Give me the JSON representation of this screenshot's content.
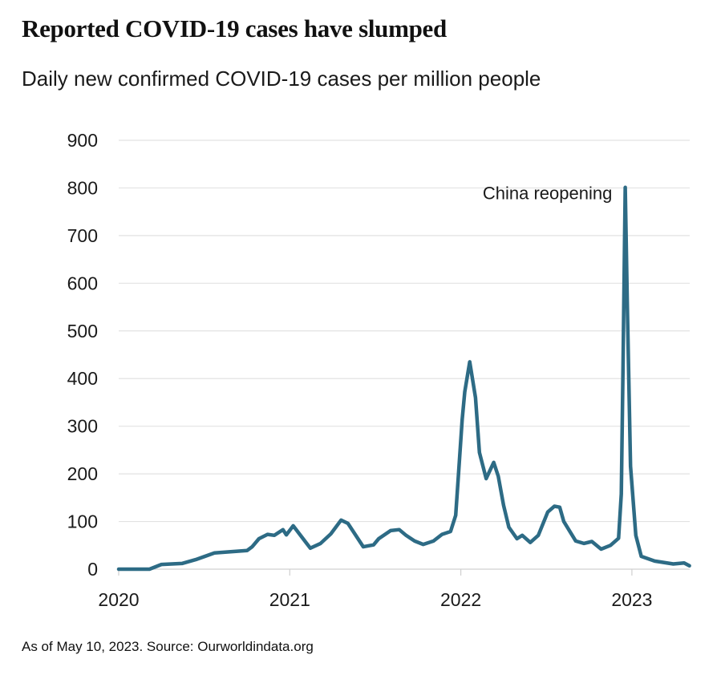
{
  "chart_data": {
    "type": "line",
    "title": "Reported COVID-19 cases have slumped",
    "subtitle": "Daily new confirmed COVID-19 cases per million people",
    "xlabel": "",
    "ylabel": "",
    "ylim": [
      0,
      900
    ],
    "xlim": [
      2020,
      2023.36
    ],
    "yticks": [
      0,
      100,
      200,
      300,
      400,
      500,
      600,
      700,
      800,
      900
    ],
    "xticks": [
      2020,
      2021,
      2022,
      2023
    ],
    "grid": true,
    "line_color": "#2d6b85",
    "annotation": {
      "text": "China reopening",
      "x": 2022.96,
      "y": 800
    },
    "source_note": "As of May 10, 2023. Source: Ourworldindata.org",
    "series": [
      {
        "x": [
          2020.0,
          2020.18,
          2020.25,
          2020.37,
          2020.45,
          2020.56,
          2020.63,
          2020.75,
          2020.78,
          2020.82,
          2020.87,
          2020.91,
          2020.96,
          2020.98,
          2021.02,
          2021.12,
          2021.18,
          2021.24,
          2021.3,
          2021.34,
          2021.43,
          2021.49,
          2021.52,
          2021.59,
          2021.64,
          2021.68,
          2021.73,
          2021.78,
          2021.84,
          2021.89,
          2021.94,
          2021.97,
          2021.984,
          2022.008,
          2022.023,
          2022.052,
          2022.086,
          2022.109,
          2022.148,
          2022.192,
          2022.219,
          2022.25,
          2022.281,
          2022.328,
          2022.359,
          2022.406,
          2022.453,
          2022.508,
          2022.547,
          2022.578,
          2022.602,
          2022.672,
          2022.719,
          2022.766,
          2022.82,
          2022.875,
          2022.922,
          2022.938,
          2022.948,
          2022.961,
          2022.973,
          2022.992,
          2023.023,
          2023.055,
          2023.133,
          2023.242,
          2023.305,
          2023.336
        ],
        "values": [
          0,
          0,
          10,
          12,
          20,
          34,
          36,
          39,
          47,
          64,
          73,
          71,
          83,
          72,
          91,
          44,
          54,
          74,
          103,
          96,
          47,
          51,
          64,
          81,
          83,
          71,
          59,
          52,
          59,
          73,
          79,
          113,
          187,
          314,
          372,
          435,
          360,
          245,
          190,
          224,
          195,
          134,
          88,
          64,
          71,
          56,
          71,
          120,
          132,
          130,
          100,
          59,
          54,
          58,
          42,
          50,
          65,
          158,
          419,
          801,
          563,
          216,
          71,
          27,
          17,
          11,
          13,
          7
        ]
      }
    ]
  }
}
